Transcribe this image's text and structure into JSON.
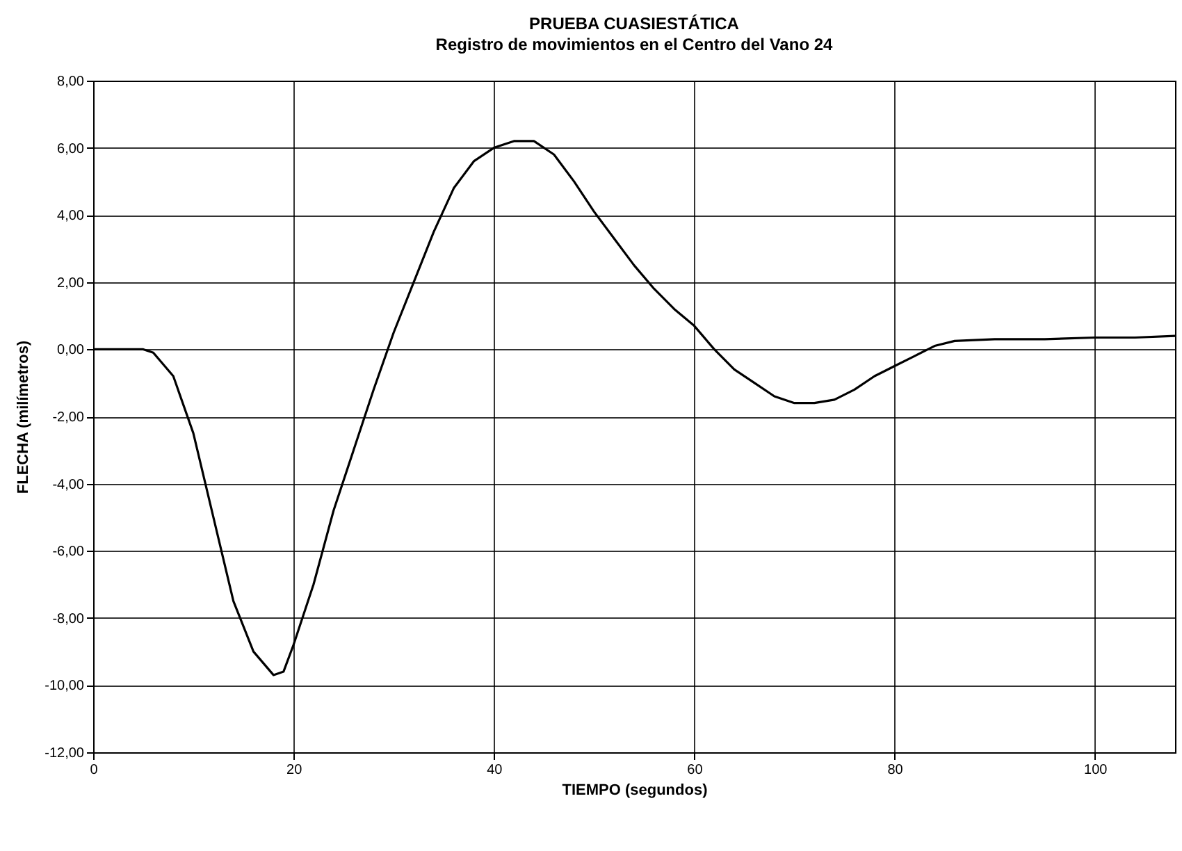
{
  "chart_data": {
    "type": "line",
    "title": "PRUEBA CUASIESTÁTICA",
    "subtitle": "Registro de movimientos en el Centro del Vano 24",
    "xlabel": "TIEMPO (segundos)",
    "ylabel": "FLECHA (milímetros)",
    "x": [
      0,
      2,
      4,
      5,
      6,
      8,
      10,
      12,
      14,
      16,
      18,
      19,
      20,
      22,
      24,
      26,
      28,
      30,
      32,
      34,
      36,
      38,
      40,
      42,
      44,
      46,
      48,
      50,
      52,
      54,
      56,
      58,
      60,
      62,
      64,
      66,
      68,
      70,
      72,
      74,
      76,
      78,
      80,
      82,
      84,
      86,
      90,
      95,
      100,
      104,
      108
    ],
    "series": [
      {
        "color": "#000000",
        "values": [
          0,
          0,
          0,
          0,
          -0.1,
          -0.8,
          -2.5,
          -5,
          -7.5,
          -9,
          -9.7,
          -9.6,
          -8.8,
          -7,
          -4.8,
          -3,
          -1.2,
          0.5,
          2,
          3.5,
          4.8,
          5.6,
          6.0,
          6.2,
          6.2,
          5.8,
          5,
          4.1,
          3.3,
          2.5,
          1.8,
          1.2,
          0.7,
          0,
          -0.6,
          -1,
          -1.4,
          -1.6,
          -1.6,
          -1.5,
          -1.2,
          -0.8,
          -0.5,
          -0.2,
          0.1,
          0.25,
          0.3,
          0.3,
          0.35,
          0.35,
          0.4
        ]
      }
    ],
    "xlim": [
      0,
      108
    ],
    "xticks": [
      0,
      20,
      40,
      60,
      80,
      100
    ],
    "ylim": [
      -12,
      8
    ],
    "yticks": [
      {
        "value": -12,
        "label": "-12,00"
      },
      {
        "value": -10,
        "label": "-10,00"
      },
      {
        "value": -8,
        "label": "-8,00"
      },
      {
        "value": -6,
        "label": "-6,00"
      },
      {
        "value": -4,
        "label": "-4,00"
      },
      {
        "value": -2,
        "label": "-2,00"
      },
      {
        "value": 0,
        "label": "0,00"
      },
      {
        "value": 2,
        "label": "2,00"
      },
      {
        "value": 4,
        "label": "4,00"
      },
      {
        "value": 6,
        "label": "6,00"
      },
      {
        "value": 8,
        "label": "8,00"
      }
    ],
    "grid": true,
    "marker": "none",
    "line_style": "solid"
  }
}
